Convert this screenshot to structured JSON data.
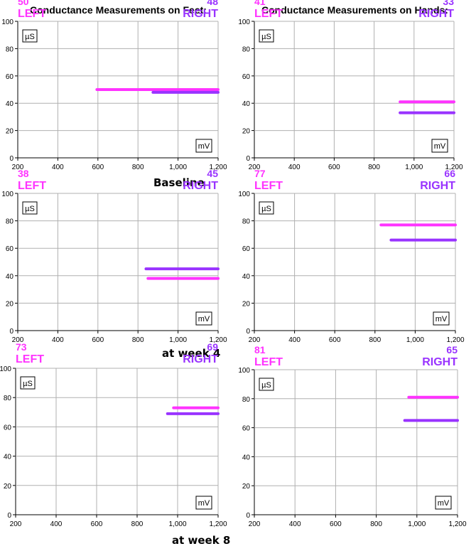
{
  "headings": {
    "feet": "Conductance Measurements on Feet:",
    "hands": "Conductance Measurements on Hands:"
  },
  "row_labels": [
    "Baseline",
    "at week 4",
    "at week 8"
  ],
  "colors": {
    "left": "#ff33ff",
    "right": "#9933ff",
    "grid": "#b0b0b0",
    "axis": "#000000"
  },
  "units": {
    "y": "µS",
    "x": "mV"
  },
  "side_labels": {
    "left": "LEFT",
    "right": "RIGHT"
  },
  "panels": [
    {
      "left_value": "50",
      "right_value": "48"
    },
    {
      "left_value": "41",
      "right_value": "33"
    },
    {
      "left_value": "38",
      "right_value": "45"
    },
    {
      "left_value": "77",
      "right_value": "66"
    },
    {
      "left_value": "73",
      "right_value": "69"
    },
    {
      "left_value": "81",
      "right_value": "65"
    }
  ],
  "chart_data": [
    {
      "type": "line",
      "title": "Conductance Measurements on Feet:",
      "subtitle": "Baseline",
      "xlabel": "mV",
      "ylabel": "µS",
      "xlim": [
        200,
        1200
      ],
      "ylim": [
        0,
        100
      ],
      "xticks": [
        "200",
        "400",
        "600",
        "800",
        "1,000",
        "1,200"
      ],
      "yticks": [
        "0",
        "20",
        "40",
        "60",
        "80",
        "100"
      ],
      "grid": true,
      "series": [
        {
          "name": "LEFT",
          "value": 50,
          "x": [
            595,
            1200
          ],
          "y": [
            50,
            50
          ],
          "color": "#ff33ff"
        },
        {
          "name": "RIGHT",
          "value": 48,
          "x": [
            875,
            1200
          ],
          "y": [
            48,
            48
          ],
          "color": "#9933ff"
        }
      ]
    },
    {
      "type": "line",
      "title": "Conductance Measurements on Hands:",
      "subtitle": "Baseline",
      "xlabel": "mV",
      "ylabel": "µS",
      "xlim": [
        200,
        1200
      ],
      "ylim": [
        0,
        100
      ],
      "xticks": [
        "200",
        "400",
        "600",
        "800",
        "1,000",
        "1,200"
      ],
      "yticks": [
        "0",
        "20",
        "40",
        "60",
        "80",
        "100"
      ],
      "grid": true,
      "series": [
        {
          "name": "LEFT",
          "value": 41,
          "x": [
            930,
            1200
          ],
          "y": [
            41,
            41
          ],
          "color": "#ff33ff"
        },
        {
          "name": "RIGHT",
          "value": 33,
          "x": [
            930,
            1200
          ],
          "y": [
            33,
            33
          ],
          "color": "#9933ff"
        }
      ]
    },
    {
      "type": "line",
      "title": "Conductance Measurements on Feet:",
      "subtitle": "at week 4",
      "xlabel": "mV",
      "ylabel": "µS",
      "xlim": [
        200,
        1200
      ],
      "ylim": [
        0,
        100
      ],
      "xticks": [
        "200",
        "400",
        "600",
        "800",
        "1,000",
        "1,200"
      ],
      "yticks": [
        "0",
        "20",
        "40",
        "60",
        "80",
        "100"
      ],
      "grid": true,
      "series": [
        {
          "name": "LEFT",
          "value": 38,
          "x": [
            850,
            1200
          ],
          "y": [
            38,
            38
          ],
          "color": "#ff33ff"
        },
        {
          "name": "RIGHT",
          "value": 45,
          "x": [
            840,
            1200
          ],
          "y": [
            45,
            45
          ],
          "color": "#9933ff"
        }
      ]
    },
    {
      "type": "line",
      "title": "Conductance Measurements on Hands:",
      "subtitle": "at week 4",
      "xlabel": "mV",
      "ylabel": "µS",
      "xlim": [
        200,
        1200
      ],
      "ylim": [
        0,
        100
      ],
      "xticks": [
        "200",
        "400",
        "600",
        "800",
        "1,000",
        "1,200"
      ],
      "yticks": [
        "0",
        "20",
        "40",
        "60",
        "80",
        "100"
      ],
      "grid": true,
      "series": [
        {
          "name": "LEFT",
          "value": 77,
          "x": [
            830,
            1200
          ],
          "y": [
            77,
            77
          ],
          "color": "#ff33ff"
        },
        {
          "name": "RIGHT",
          "value": 66,
          "x": [
            880,
            1200
          ],
          "y": [
            66,
            66
          ],
          "color": "#9933ff"
        }
      ]
    },
    {
      "type": "line",
      "title": "Conductance Measurements on Feet:",
      "subtitle": "at week 8",
      "xlabel": "mV",
      "ylabel": "µS",
      "xlim": [
        200,
        1200
      ],
      "ylim": [
        0,
        100
      ],
      "xticks": [
        "200",
        "400",
        "600",
        "800",
        "1,000",
        "1,200"
      ],
      "yticks": [
        "0",
        "20",
        "40",
        "60",
        "80",
        "100"
      ],
      "grid": true,
      "series": [
        {
          "name": "LEFT",
          "value": 73,
          "x": [
            980,
            1200
          ],
          "y": [
            73,
            73
          ],
          "color": "#ff33ff"
        },
        {
          "name": "RIGHT",
          "value": 69,
          "x": [
            950,
            1200
          ],
          "y": [
            69,
            69
          ],
          "color": "#9933ff"
        }
      ]
    },
    {
      "type": "line",
      "title": "Conductance Measurements on Hands:",
      "subtitle": "at week 8",
      "xlabel": "mV",
      "ylabel": "µS",
      "xlim": [
        200,
        1200
      ],
      "ylim": [
        0,
        100
      ],
      "xticks": [
        "200",
        "400",
        "600",
        "800",
        "1,000",
        "1,200"
      ],
      "yticks": [
        "0",
        "20",
        "40",
        "60",
        "80",
        "100"
      ],
      "grid": true,
      "series": [
        {
          "name": "LEFT",
          "value": 81,
          "x": [
            960,
            1200
          ],
          "y": [
            81,
            81
          ],
          "color": "#ff33ff"
        },
        {
          "name": "RIGHT",
          "value": 65,
          "x": [
            940,
            1200
          ],
          "y": [
            65,
            65
          ],
          "color": "#9933ff"
        }
      ]
    }
  ]
}
